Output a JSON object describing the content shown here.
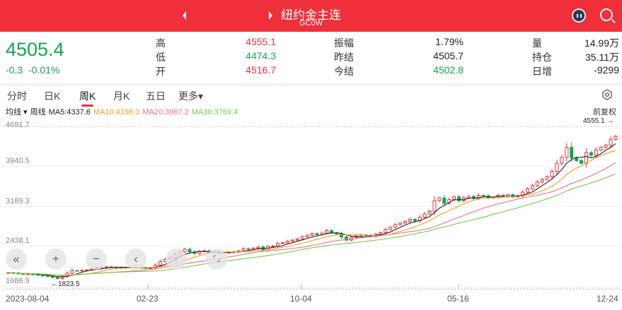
{
  "header": {
    "title": "纽约金主连",
    "code": "GC0W",
    "prev_icon": "caret-left-icon",
    "next_icon": "caret-right-icon",
    "assistant_icon": "robot-icon",
    "search_icon": "search-icon"
  },
  "quote": {
    "last": "4505.4",
    "change": "-0.3",
    "change_pct": "-0.01%",
    "fields": [
      {
        "label": "高",
        "value": "4555.1",
        "color": "red"
      },
      {
        "label": "低",
        "value": "4474.3",
        "color": "green"
      },
      {
        "label": "开",
        "value": "4516.7",
        "color": "red"
      },
      {
        "label": "振幅",
        "value": "1.79%",
        "color": "plain"
      },
      {
        "label": "昨结",
        "value": "4505.7",
        "color": "plain"
      },
      {
        "label": "今结",
        "value": "4502.8",
        "color": "green"
      },
      {
        "label": "量",
        "value": "14.99万",
        "color": "plain"
      },
      {
        "label": "持仓",
        "value": "35.11万",
        "color": "plain"
      },
      {
        "label": "日增",
        "value": "-9299",
        "color": "plain"
      }
    ]
  },
  "tabs": [
    {
      "label": "分时"
    },
    {
      "label": "日K"
    },
    {
      "label": "周K",
      "active": true
    },
    {
      "label": "月K"
    },
    {
      "label": "五日"
    },
    {
      "label": "更多▾"
    }
  ],
  "indicator": {
    "type": "均线 ▾",
    "period": "周线",
    "ma5": "MA5:4337.6",
    "ma10": "MA10:4198.3",
    "ma20": "MA20:3967.2",
    "ma30": "MA30:3769.4",
    "adjust": "前复权"
  },
  "colors": {
    "up": "#e8323c",
    "down": "#14a651",
    "ma5": "#222222",
    "ma10": "#f0a020",
    "ma20": "#f06e8a",
    "ma30": "#78c850",
    "topbar": "#ef2f3a"
  },
  "chart_data": {
    "type": "candlestick",
    "y_ticks": [
      "4691.7",
      "3940.5",
      "3189.3",
      "2438.1",
      "1686.9"
    ],
    "ylim": [
      1686.9,
      4691.7
    ],
    "x_ticks": [
      "2023-08-04",
      "02-23",
      "10-04",
      "05-16",
      "12-24"
    ],
    "max_label": "4555.1 →",
    "min_label": "←1823.5",
    "closes": [
      1950,
      1945,
      1930,
      1920,
      1925,
      1915,
      1905,
      1890,
      1880,
      1860,
      1840,
      1880,
      1940,
      1990,
      1985,
      1995,
      2000,
      2020,
      2040,
      2050,
      2060,
      2055,
      2045,
      2050,
      2040,
      2050,
      2035,
      2045,
      2040,
      2040,
      2090,
      2160,
      2200,
      2230,
      2290,
      2340,
      2390,
      2340,
      2310,
      2350,
      2360,
      2330,
      2340,
      2320,
      2330,
      2330,
      2340,
      2360,
      2400,
      2390,
      2410,
      2430,
      2380,
      2440,
      2450,
      2500,
      2510,
      2540,
      2560,
      2580,
      2620,
      2650,
      2680,
      2660,
      2690,
      2740,
      2700,
      2680,
      2620,
      2560,
      2610,
      2640,
      2660,
      2650,
      2630,
      2670,
      2700,
      2760,
      2800,
      2850,
      2880,
      2910,
      2950,
      2920,
      2990,
      3050,
      3100,
      3300,
      3350,
      3250,
      3320,
      3370,
      3300,
      3350,
      3380,
      3340,
      3400,
      3390,
      3350,
      3360,
      3400,
      3380,
      3410,
      3370,
      3390,
      3460,
      3520,
      3580,
      3650,
      3700,
      3750,
      3850,
      4000,
      4110,
      4300,
      4100,
      4050,
      4000,
      4200,
      4150,
      4250,
      4300,
      4340,
      4450,
      4505
    ]
  },
  "controls": [
    "«",
    "+",
    "−",
    "‹",
    "›",
    "⌜⌟"
  ]
}
